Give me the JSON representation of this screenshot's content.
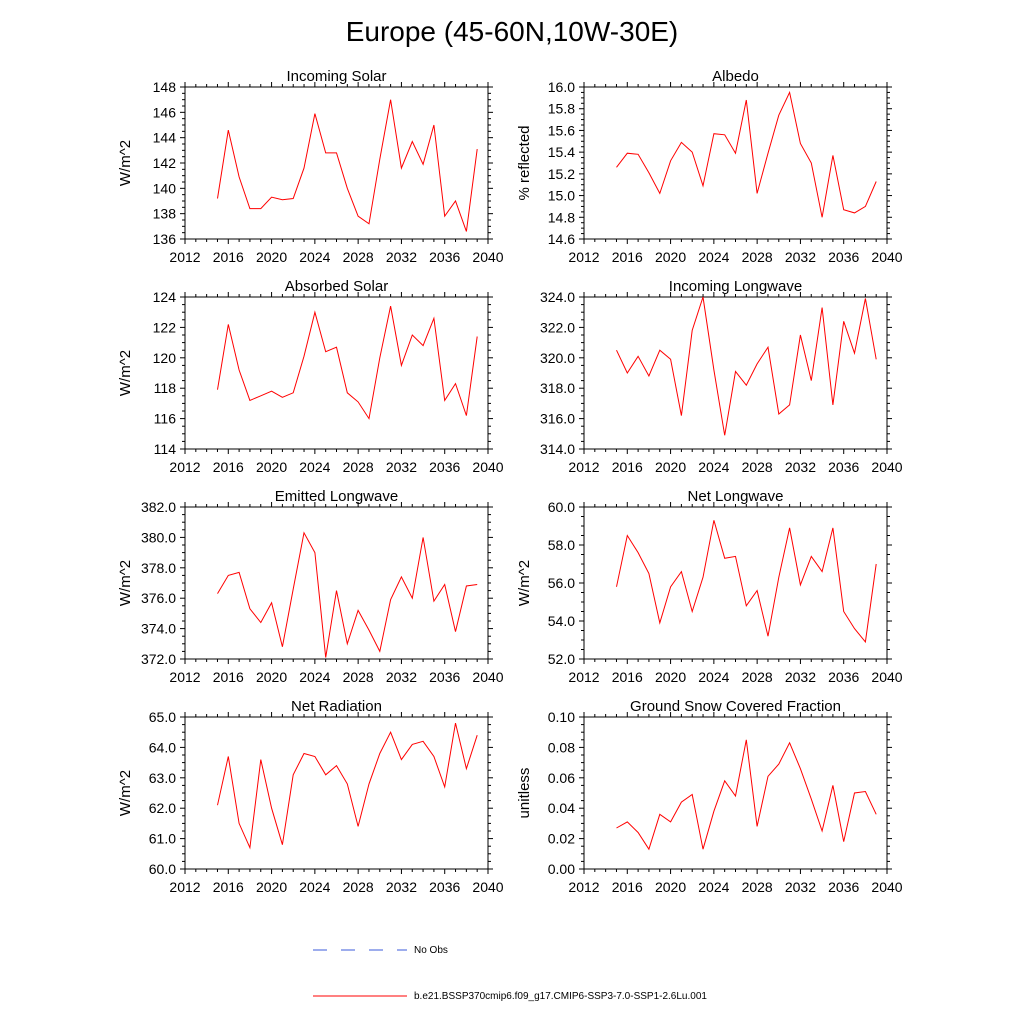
{
  "title": "Europe (45-60N,10W-30E)",
  "series_color": "#ff0000",
  "obs_color": "#3b5bdb",
  "legend": {
    "obs_label": "No Obs",
    "model_label": "b.e21.BSSP370cmip6.f09_g17.CMIP6-SSP3-7.0-SSP1-2.6Lu.001"
  },
  "chart_data": [
    {
      "type": "line",
      "title": "Incoming Solar",
      "ylabel": "W/m^2",
      "xlim": [
        2012,
        2040
      ],
      "ylim": [
        136,
        148
      ],
      "xticks": [
        2012,
        2016,
        2020,
        2024,
        2028,
        2032,
        2036,
        2040
      ],
      "yticks": [
        "136",
        "138",
        "140",
        "142",
        "144",
        "146",
        "148"
      ],
      "x": [
        2015,
        2016,
        2017,
        2018,
        2019,
        2020,
        2021,
        2022,
        2023,
        2024,
        2025,
        2026,
        2027,
        2028,
        2029,
        2030,
        2031,
        2032,
        2033,
        2034,
        2035,
        2036,
        2037,
        2038,
        2039
      ],
      "values": [
        139.2,
        144.6,
        140.9,
        138.4,
        138.4,
        139.3,
        139.1,
        139.2,
        141.6,
        145.9,
        142.8,
        142.8,
        140.0,
        137.8,
        137.2,
        142.3,
        147.0,
        141.6,
        143.7,
        141.9,
        145.0,
        137.8,
        139.0,
        136.6,
        143.1
      ]
    },
    {
      "type": "line",
      "title": "Albedo",
      "ylabel": "% reflected",
      "xlim": [
        2012,
        2040
      ],
      "ylim": [
        14.6,
        16.0
      ],
      "xticks": [
        2012,
        2016,
        2020,
        2024,
        2028,
        2032,
        2036,
        2040
      ],
      "yticks": [
        "14.6",
        "14.8",
        "15.0",
        "15.2",
        "15.4",
        "15.6",
        "15.8",
        "16.0"
      ],
      "x": [
        2015,
        2016,
        2017,
        2018,
        2019,
        2020,
        2021,
        2022,
        2023,
        2024,
        2025,
        2026,
        2027,
        2028,
        2029,
        2030,
        2031,
        2032,
        2033,
        2034,
        2035,
        2036,
        2037,
        2038,
        2039
      ],
      "values": [
        15.26,
        15.39,
        15.38,
        15.21,
        15.02,
        15.32,
        15.49,
        15.4,
        15.09,
        15.57,
        15.56,
        15.39,
        15.88,
        15.02,
        15.39,
        15.74,
        15.95,
        15.48,
        15.3,
        14.8,
        15.37,
        14.87,
        14.84,
        14.9,
        15.13
      ]
    },
    {
      "type": "line",
      "title": "Absorbed Solar",
      "ylabel": "W/m^2",
      "xlim": [
        2012,
        2040
      ],
      "ylim": [
        114,
        124
      ],
      "xticks": [
        2012,
        2016,
        2020,
        2024,
        2028,
        2032,
        2036,
        2040
      ],
      "yticks": [
        "114",
        "116",
        "118",
        "120",
        "122",
        "124"
      ],
      "x": [
        2015,
        2016,
        2017,
        2018,
        2019,
        2020,
        2021,
        2022,
        2023,
        2024,
        2025,
        2026,
        2027,
        2028,
        2029,
        2030,
        2031,
        2032,
        2033,
        2034,
        2035,
        2036,
        2037,
        2038,
        2039
      ],
      "values": [
        117.9,
        122.2,
        119.2,
        117.2,
        117.5,
        117.8,
        117.4,
        117.7,
        120.1,
        123.0,
        120.4,
        120.7,
        117.7,
        117.1,
        116.0,
        120.0,
        123.4,
        119.5,
        121.5,
        120.8,
        122.6,
        117.2,
        118.3,
        116.2,
        121.4
      ]
    },
    {
      "type": "line",
      "title": "Incoming Longwave",
      "ylabel": "",
      "xlim": [
        2012,
        2040
      ],
      "ylim": [
        314,
        324
      ],
      "xticks": [
        2012,
        2016,
        2020,
        2024,
        2028,
        2032,
        2036,
        2040
      ],
      "yticks": [
        "314.0",
        "316.0",
        "318.0",
        "320.0",
        "322.0",
        "324.0"
      ],
      "x": [
        2015,
        2016,
        2017,
        2018,
        2019,
        2020,
        2021,
        2022,
        2023,
        2024,
        2025,
        2026,
        2027,
        2028,
        2029,
        2030,
        2031,
        2032,
        2033,
        2034,
        2035,
        2036,
        2037,
        2038,
        2039
      ],
      "values": [
        320.5,
        319.0,
        320.1,
        318.8,
        320.5,
        319.9,
        316.2,
        321.8,
        324.0,
        319.2,
        314.9,
        319.1,
        318.2,
        319.6,
        320.7,
        316.3,
        316.9,
        321.5,
        318.5,
        323.3,
        316.9,
        322.4,
        320.3,
        323.9,
        319.9
      ]
    },
    {
      "type": "line",
      "title": "Emitted Longwave",
      "ylabel": "W/m^2",
      "xlim": [
        2012,
        2040
      ],
      "ylim": [
        372,
        382
      ],
      "xticks": [
        2012,
        2016,
        2020,
        2024,
        2028,
        2032,
        2036,
        2040
      ],
      "yticks": [
        "372.0",
        "374.0",
        "376.0",
        "378.0",
        "380.0",
        "382.0"
      ],
      "x": [
        2015,
        2016,
        2017,
        2018,
        2019,
        2020,
        2021,
        2022,
        2023,
        2024,
        2025,
        2026,
        2027,
        2028,
        2029,
        2030,
        2031,
        2032,
        2033,
        2034,
        2035,
        2036,
        2037,
        2038,
        2039
      ],
      "values": [
        376.3,
        377.5,
        377.7,
        375.3,
        374.4,
        375.7,
        372.8,
        376.6,
        380.3,
        379.0,
        372.1,
        376.5,
        373.0,
        375.2,
        373.9,
        372.5,
        375.9,
        377.4,
        376.0,
        380.0,
        375.8,
        376.9,
        373.8,
        376.8,
        376.9
      ]
    },
    {
      "type": "line",
      "title": "Net Longwave",
      "ylabel": "W/m^2",
      "xlim": [
        2012,
        2040
      ],
      "ylim": [
        52,
        60
      ],
      "xticks": [
        2012,
        2016,
        2020,
        2024,
        2028,
        2032,
        2036,
        2040
      ],
      "yticks": [
        "52.0",
        "54.0",
        "56.0",
        "58.0",
        "60.0"
      ],
      "x": [
        2015,
        2016,
        2017,
        2018,
        2019,
        2020,
        2021,
        2022,
        2023,
        2024,
        2025,
        2026,
        2027,
        2028,
        2029,
        2030,
        2031,
        2032,
        2033,
        2034,
        2035,
        2036,
        2037,
        2038,
        2039
      ],
      "values": [
        55.8,
        58.5,
        57.6,
        56.5,
        53.9,
        55.8,
        56.6,
        54.5,
        56.3,
        59.3,
        57.3,
        57.4,
        54.8,
        55.6,
        53.2,
        56.3,
        58.9,
        55.9,
        57.4,
        56.6,
        58.9,
        54.5,
        53.6,
        52.9,
        57.0
      ]
    },
    {
      "type": "line",
      "title": "Net Radiation",
      "ylabel": "W/m^2",
      "xlim": [
        2012,
        2040
      ],
      "ylim": [
        60,
        65
      ],
      "xticks": [
        2012,
        2016,
        2020,
        2024,
        2028,
        2032,
        2036,
        2040
      ],
      "yticks": [
        "60.0",
        "61.0",
        "62.0",
        "63.0",
        "64.0",
        "65.0"
      ],
      "x": [
        2015,
        2016,
        2017,
        2018,
        2019,
        2020,
        2021,
        2022,
        2023,
        2024,
        2025,
        2026,
        2027,
        2028,
        2029,
        2030,
        2031,
        2032,
        2033,
        2034,
        2035,
        2036,
        2037,
        2038,
        2039
      ],
      "values": [
        62.1,
        63.7,
        61.5,
        60.7,
        63.6,
        62.0,
        60.8,
        63.1,
        63.8,
        63.7,
        63.1,
        63.4,
        62.8,
        61.4,
        62.8,
        63.8,
        64.5,
        63.6,
        64.1,
        64.2,
        63.7,
        62.7,
        64.8,
        63.3,
        64.4
      ]
    },
    {
      "type": "line",
      "title": "Ground Snow Covered Fraction",
      "ylabel": "unitless",
      "xlim": [
        2012,
        2040
      ],
      "ylim": [
        0,
        0.1
      ],
      "xticks": [
        2012,
        2016,
        2020,
        2024,
        2028,
        2032,
        2036,
        2040
      ],
      "yticks": [
        "0.00",
        "0.02",
        "0.04",
        "0.06",
        "0.08",
        "0.10"
      ],
      "x": [
        2015,
        2016,
        2017,
        2018,
        2019,
        2020,
        2021,
        2022,
        2023,
        2024,
        2025,
        2026,
        2027,
        2028,
        2029,
        2030,
        2031,
        2032,
        2033,
        2034,
        2035,
        2036,
        2037,
        2038,
        2039
      ],
      "values": [
        0.027,
        0.031,
        0.024,
        0.013,
        0.036,
        0.031,
        0.044,
        0.049,
        0.013,
        0.038,
        0.058,
        0.048,
        0.085,
        0.028,
        0.061,
        0.069,
        0.083,
        0.066,
        0.046,
        0.025,
        0.055,
        0.018,
        0.05,
        0.051,
        0.036
      ]
    }
  ]
}
